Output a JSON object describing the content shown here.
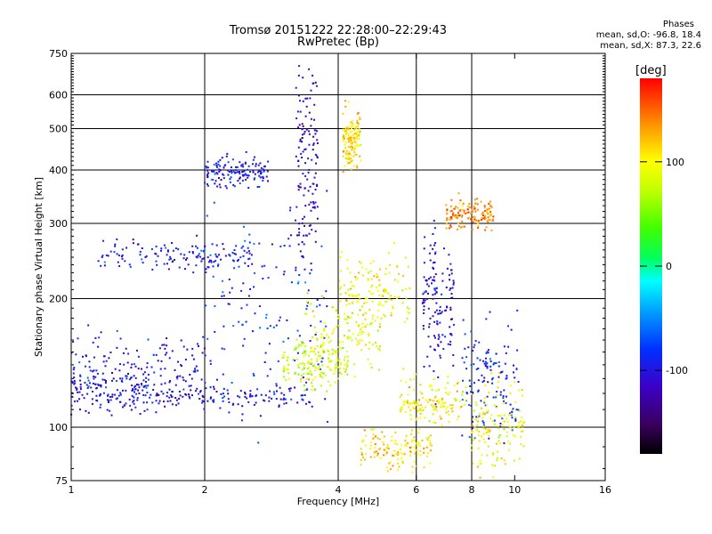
{
  "title_line1": "Tromsø 20151222 22:28:00–22:29:43",
  "title_line2": "RwPretec (Bp)",
  "phases": {
    "heading": "Phases",
    "o_line": "mean, sd,O: -96.8, 18.4",
    "x_line": "mean, sd,X:  87.3, 22.6"
  },
  "colorbar": {
    "unit_label": "[deg]",
    "ticks": [
      {
        "value": 100,
        "label": "100"
      },
      {
        "value": 0,
        "label": "0"
      },
      {
        "value": -100,
        "label": "-100"
      }
    ],
    "range": [
      -180,
      180
    ]
  },
  "chart_data": {
    "type": "scatter",
    "xlabel": "Frequency [MHz]",
    "ylabel": "Stationary phase Virtual Height [km]",
    "x_scale": "log",
    "y_scale": "log",
    "xlim": [
      1,
      16
    ],
    "ylim": [
      75,
      750
    ],
    "x_ticks": [
      1,
      2,
      4,
      6,
      8,
      10,
      16
    ],
    "y_ticks": [
      75,
      100,
      200,
      300,
      400,
      500,
      600,
      750
    ],
    "x_grid": [
      2,
      4,
      6,
      8
    ],
    "y_grid": [
      100,
      200,
      300,
      400,
      500,
      600
    ],
    "grid": true,
    "series": [
      {
        "description": "O-mode echoes, phase near -100 deg",
        "phase_deg": -96.8,
        "clusters": [
          {
            "x_range": [
              1.0,
              1.5
            ],
            "y_center": 122,
            "y_spread": 0.06,
            "phase": -100
          },
          {
            "x_range": [
              1.5,
              3.5
            ],
            "y_center": 118,
            "y_spread": 0.03,
            "phase": -105
          },
          {
            "x_range": [
              1.15,
              2.6
            ],
            "y_center": 252,
            "y_spread": 0.04,
            "phase": -95
          },
          {
            "x_range": [
              1.0,
              2.0
            ],
            "y_center": 140,
            "y_spread": 0.1,
            "phase": -100
          },
          {
            "x_range": [
              2.0,
              3.8
            ],
            "y_center": 190,
            "y_spread": 0.28,
            "phase": -85
          },
          {
            "x_range": [
              3.2,
              3.6
            ],
            "y_center": 420,
            "y_spread": 0.28,
            "phase": -110
          },
          {
            "x_range": [
              6.2,
              7.3
            ],
            "y_center": 200,
            "y_spread": 0.18,
            "phase": -110
          },
          {
            "x_range": [
              7.6,
              10.2
            ],
            "y_center": 130,
            "y_spread": 0.16,
            "phase": -90
          },
          {
            "x_range": [
              2.0,
              2.8
            ],
            "y_center": 395,
            "y_spread": 0.04,
            "phase": -95
          }
        ]
      },
      {
        "description": "X-mode echoes, phase near 90 deg",
        "phase_deg": 87.3,
        "clusters": [
          {
            "x_range": [
              3.3,
              5.0
            ],
            "y_center": 160,
            "y_spread": 0.1,
            "phase": 90
          },
          {
            "x_range": [
              3.0,
              4.2
            ],
            "y_center": 140,
            "y_spread": 0.06,
            "phase": 75
          },
          {
            "x_range": [
              4.1,
              4.5
            ],
            "y_center": 470,
            "y_spread": 0.08,
            "phase": 110
          },
          {
            "x_range": [
              4.0,
              5.8
            ],
            "y_center": 210,
            "y_spread": 0.12,
            "phase": 95
          },
          {
            "x_range": [
              5.5,
              7.8
            ],
            "y_center": 115,
            "y_spread": 0.06,
            "phase": 100
          },
          {
            "x_range": [
              4.5,
              6.5
            ],
            "y_center": 88,
            "y_spread": 0.06,
            "phase": 110
          },
          {
            "x_range": [
              7.0,
              9.0
            ],
            "y_center": 315,
            "y_spread": 0.04,
            "phase": 140
          },
          {
            "x_range": [
              8.0,
              10.5
            ],
            "y_center": 100,
            "y_spread": 0.12,
            "phase": 95
          }
        ]
      }
    ]
  }
}
